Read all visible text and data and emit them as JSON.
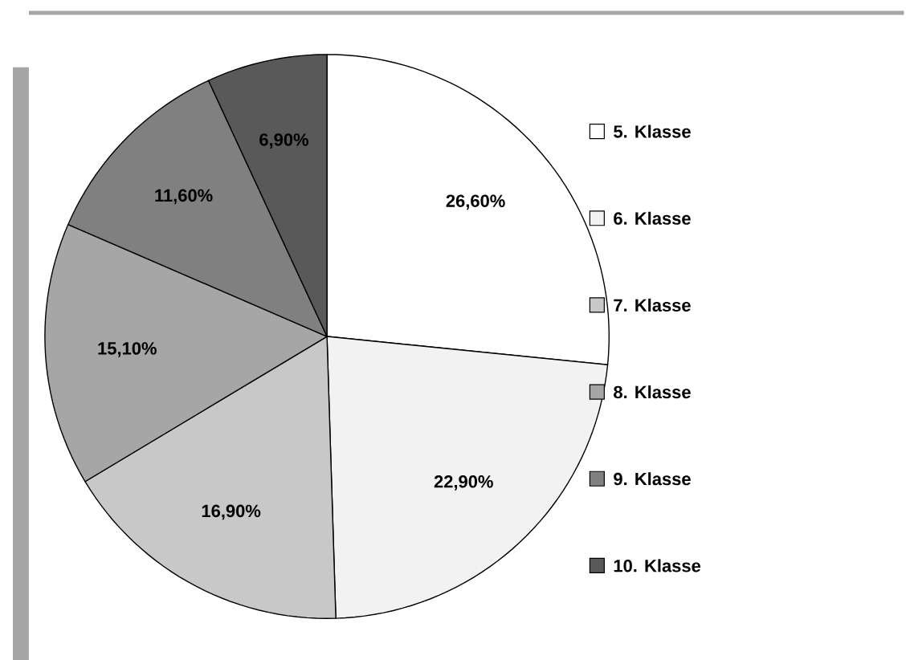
{
  "chart_data": {
    "type": "pie",
    "categories": [
      "5. Klasse",
      "6. Klasse",
      "7. Klasse",
      "8. Klasse",
      "9. Klasse",
      "10. Klasse"
    ],
    "values": [
      26.6,
      22.9,
      16.9,
      15.1,
      11.6,
      6.9
    ],
    "value_labels": [
      "26,60%",
      "22,90%",
      "16,90%",
      "15,10%",
      "11,60%",
      "6,90%"
    ],
    "colors": [
      "#ffffff",
      "#f2f2f2",
      "#c8c8c8",
      "#a6a6a6",
      "#808080",
      "#595959"
    ],
    "legend": "right"
  }
}
